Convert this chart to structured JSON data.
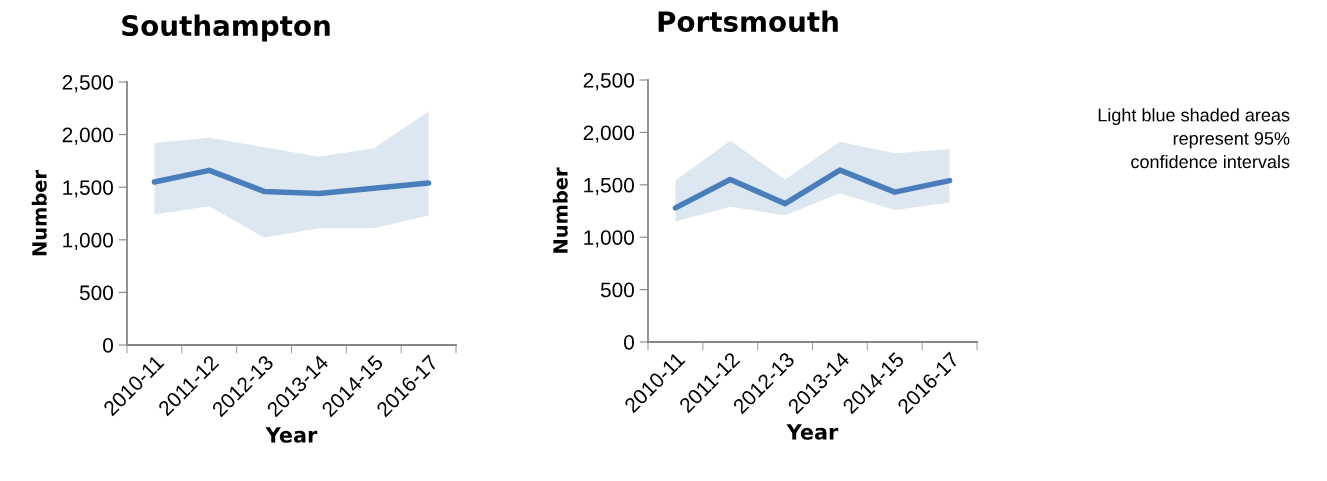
{
  "chart_data": [
    {
      "type": "line",
      "title": "Southampton",
      "xlabel": "Year",
      "ylabel": "Number",
      "categories": [
        "2010-11",
        "2011-12",
        "2012-13",
        "2013-14",
        "2014-15",
        "2016-17"
      ],
      "series": [
        {
          "color": "#4a7ebb",
          "values": [
            1550,
            1660,
            1460,
            1440,
            1490,
            1540
          ],
          "lower": [
            1240,
            1320,
            1020,
            1110,
            1110,
            1230
          ],
          "upper": [
            1920,
            1970,
            1880,
            1790,
            1870,
            2220
          ]
        }
      ],
      "ylim": [
        0,
        2500
      ],
      "yticks": [
        0,
        500,
        {
          "value": 1000,
          "label": "1,000"
        },
        {
          "value": 1500,
          "label": "1,500"
        },
        {
          "value": 2000,
          "label": "2,000"
        },
        {
          "value": 2500,
          "label": "2,500"
        }
      ],
      "grid": false
    },
    {
      "type": "line",
      "title": "Portsmouth",
      "xlabel": "Year",
      "ylabel": "Number",
      "categories": [
        "2010-11",
        "2011-12",
        "2012-13",
        "2013-14",
        "2014-15",
        "2016-17"
      ],
      "series": [
        {
          "color": "#4a7ebb",
          "values": [
            1280,
            1550,
            1320,
            1640,
            1430,
            1540
          ],
          "lower": [
            1150,
            1290,
            1210,
            1420,
            1260,
            1330
          ],
          "upper": [
            1540,
            1920,
            1550,
            1910,
            1800,
            1840
          ]
        }
      ],
      "ylim": [
        0,
        2500
      ],
      "yticks": [
        0,
        500,
        {
          "value": 1000,
          "label": "1,000"
        },
        {
          "value": 1500,
          "label": "1,500"
        },
        {
          "value": 2000,
          "label": "2,000"
        },
        {
          "value": 2500,
          "label": "2,500"
        }
      ],
      "grid": false,
      "annotations": [
        "Light blue shaded areas\nrepresent 95%\nconfidence intervals"
      ]
    }
  ]
}
